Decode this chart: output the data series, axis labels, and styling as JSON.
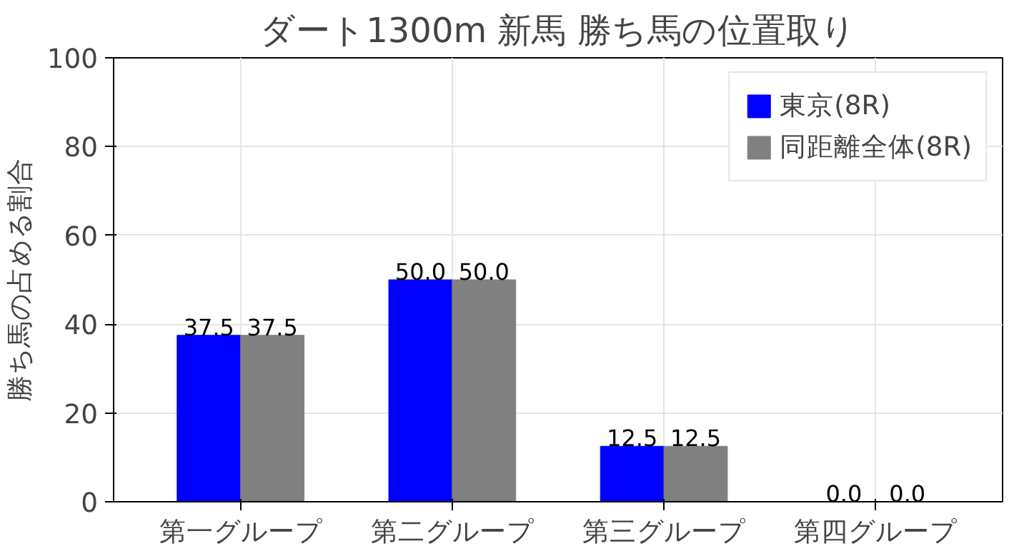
{
  "chart_data": {
    "type": "bar",
    "title": "ダート1300m 新馬 勝ち馬の位置取り",
    "ylabel": "勝ち馬の占める割合",
    "categories": [
      "第一グループ",
      "第二グループ",
      "第三グループ",
      "第四グループ"
    ],
    "series": [
      {
        "name": "東京(8R)",
        "color": "#0000ff",
        "values": [
          37.5,
          50.0,
          12.5,
          0.0
        ],
        "value_labels": [
          "37.5",
          "50.0",
          "12.5",
          "0.0"
        ]
      },
      {
        "name": "同距離全体(8R)",
        "color": "#808080",
        "values": [
          37.5,
          50.0,
          12.5,
          0.0
        ],
        "value_labels": [
          "37.5",
          "50.0",
          "12.5",
          "0.0"
        ]
      }
    ],
    "ylim": [
      0,
      100
    ],
    "yticks": [
      0,
      20,
      40,
      60,
      80,
      100
    ],
    "grid": true,
    "legend": "top right"
  }
}
